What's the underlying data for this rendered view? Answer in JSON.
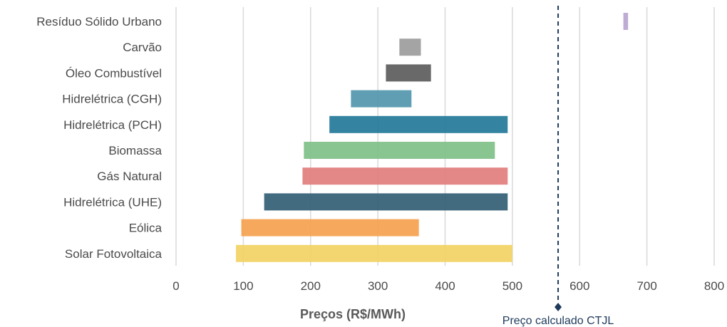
{
  "chart_data": {
    "type": "bar",
    "orientation": "horizontal-range",
    "xlabel": "Preços (R$/MWh)",
    "xlim": [
      0,
      800
    ],
    "xticks": [
      0,
      100,
      200,
      300,
      400,
      500,
      600,
      700,
      800
    ],
    "grid": true,
    "categories": [
      "Resíduo Sólido Urbano",
      "Carvão",
      "Óleo Combustível",
      "Hidrelétrica (CGH)",
      "Hidrelétrica (PCH)",
      "Biomassa",
      "Gás Natural",
      "Hidrelétrica (UHE)",
      "Eólica",
      "Solar Fotovoltaica"
    ],
    "ranges": [
      {
        "min": 665,
        "max": 672,
        "color": "#b7a3cf"
      },
      {
        "min": 332,
        "max": 364,
        "color": "#9a9a9a"
      },
      {
        "min": 312,
        "max": 379,
        "color": "#595959"
      },
      {
        "min": 260,
        "max": 350,
        "color": "#4f95ab"
      },
      {
        "min": 228,
        "max": 493,
        "color": "#1e7597"
      },
      {
        "min": 190,
        "max": 474,
        "color": "#7cbf85"
      },
      {
        "min": 188,
        "max": 493,
        "color": "#e07a7a"
      },
      {
        "min": 131,
        "max": 493,
        "color": "#2d5b72"
      },
      {
        "min": 97,
        "max": 361,
        "color": "#f5a04a"
      },
      {
        "min": 89,
        "max": 500,
        "color": "#f3d160"
      }
    ],
    "reference_line": {
      "value": 568,
      "label": "Preço calculado CTJL",
      "color": "#1f3b5c"
    }
  }
}
